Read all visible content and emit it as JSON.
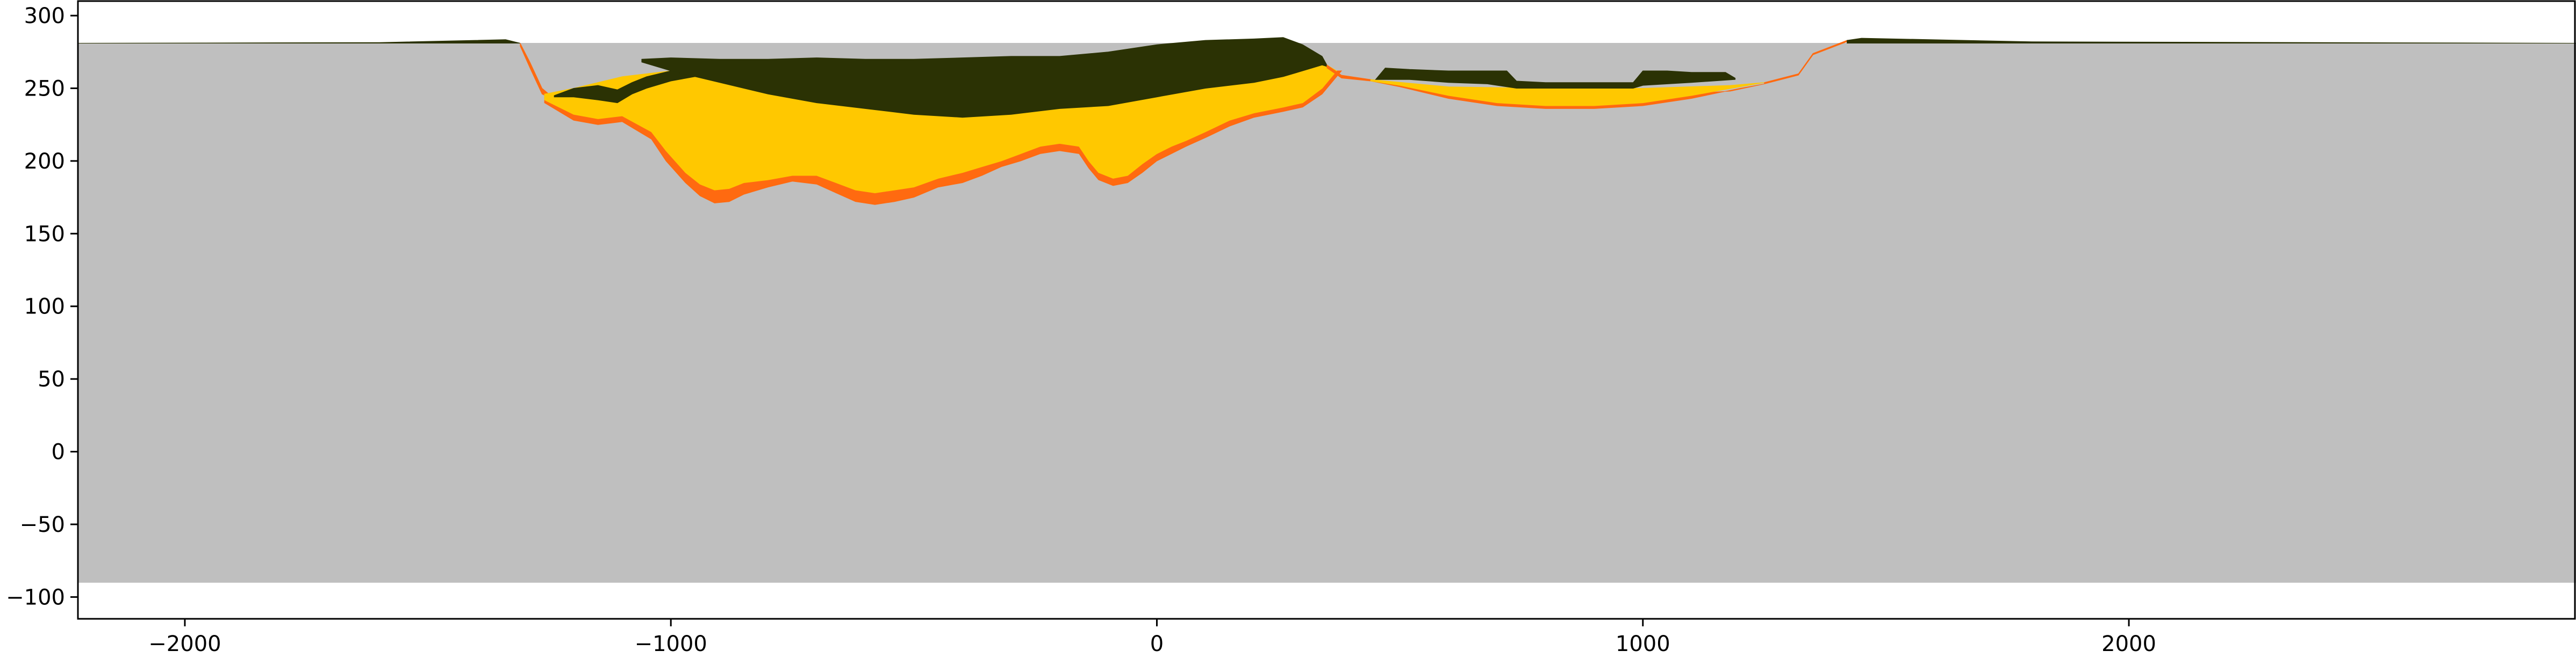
{
  "chart_data": {
    "type": "area",
    "title": "",
    "xlabel": "",
    "ylabel": "",
    "xlim": [
      -2220,
      2920
    ],
    "ylim": [
      -115,
      310
    ],
    "x_ticks": [
      -2000,
      -1000,
      0,
      1000,
      2000
    ],
    "x_tick_labels": [
      "−2000",
      "−1000",
      "0",
      "1000",
      "2000"
    ],
    "y_ticks": [
      -100,
      -50,
      0,
      50,
      100,
      150,
      200,
      250,
      300
    ],
    "y_tick_labels": [
      "−100",
      "−50",
      "0",
      "50",
      "100",
      "150",
      "200",
      "250",
      "300"
    ],
    "grid": false,
    "legend": "none",
    "colors": {
      "basement": "#bfbfbf",
      "orange": "#ff6a10",
      "yellow": "#ffc800",
      "dark": "#2b3204",
      "olive": "#8a7e3a"
    },
    "series": [
      {
        "role": "basement",
        "color": "#bfbfbf",
        "top": [
          [
            -2220,
            281
          ],
          [
            2920,
            281
          ]
        ],
        "bottom": [
          [
            -2220,
            -90
          ],
          [
            2920,
            -90
          ]
        ]
      },
      {
        "role": "west-bank-surface",
        "color": "#2b3204",
        "top": [
          [
            -2220,
            281
          ],
          [
            -1600,
            281.5
          ],
          [
            -1340,
            283.5
          ],
          [
            -1310,
            281
          ]
        ],
        "bottom": [
          [
            -2220,
            281
          ],
          [
            -1310,
            281
          ]
        ]
      },
      {
        "role": "west-slope-rim",
        "color": "#ff6a10",
        "top": [
          [
            -1310,
            281
          ],
          [
            -1290,
            268
          ],
          [
            -1265,
            250
          ],
          [
            -1240,
            243
          ]
        ],
        "bottom": [
          [
            -1310,
            279
          ],
          [
            -1290,
            264
          ],
          [
            -1265,
            246
          ],
          [
            -1240,
            242
          ]
        ]
      },
      {
        "role": "orange-basal-unit",
        "color": "#ff6a10",
        "top": [
          [
            -1260,
            244
          ],
          [
            -1200,
            241
          ],
          [
            -1100,
            233
          ],
          [
            -1000,
            223
          ],
          [
            -900,
            212
          ],
          [
            -800,
            205
          ],
          [
            -700,
            200
          ],
          [
            -600,
            203
          ],
          [
            -500,
            206
          ],
          [
            -400,
            212
          ],
          [
            -300,
            218
          ],
          [
            -200,
            224
          ],
          [
            -100,
            232
          ],
          [
            0,
            238
          ],
          [
            100,
            246
          ],
          [
            200,
            250
          ],
          [
            300,
            255
          ],
          [
            360,
            262
          ]
        ],
        "bottom": [
          [
            -1260,
            240
          ],
          [
            -1200,
            228
          ],
          [
            -1150,
            225
          ],
          [
            -1100,
            227
          ],
          [
            -1040,
            215
          ],
          [
            -1010,
            200
          ],
          [
            -970,
            185
          ],
          [
            -940,
            176
          ],
          [
            -910,
            171
          ],
          [
            -880,
            172
          ],
          [
            -850,
            177
          ],
          [
            -800,
            182
          ],
          [
            -750,
            186
          ],
          [
            -700,
            184
          ],
          [
            -660,
            178
          ],
          [
            -620,
            172
          ],
          [
            -580,
            170
          ],
          [
            -540,
            172
          ],
          [
            -500,
            175
          ],
          [
            -450,
            182
          ],
          [
            -400,
            185
          ],
          [
            -360,
            190
          ],
          [
            -320,
            196
          ],
          [
            -280,
            200
          ],
          [
            -240,
            205
          ],
          [
            -200,
            207
          ],
          [
            -160,
            205
          ],
          [
            -140,
            195
          ],
          [
            -120,
            187
          ],
          [
            -90,
            183
          ],
          [
            -60,
            185
          ],
          [
            -30,
            192
          ],
          [
            0,
            200
          ],
          [
            30,
            205
          ],
          [
            60,
            210
          ],
          [
            100,
            216
          ],
          [
            150,
            224
          ],
          [
            200,
            230
          ],
          [
            260,
            234
          ],
          [
            300,
            237
          ],
          [
            340,
            246
          ],
          [
            380,
            262
          ]
        ]
      },
      {
        "role": "yellow-unit",
        "color": "#ffc800",
        "top": [
          [
            -1260,
            246
          ],
          [
            -1200,
            250
          ],
          [
            -1100,
            258
          ],
          [
            -1000,
            262
          ],
          [
            -900,
            264
          ],
          [
            -800,
            266
          ],
          [
            -700,
            268
          ],
          [
            -600,
            268
          ],
          [
            -500,
            268
          ],
          [
            -400,
            268
          ],
          [
            -300,
            270
          ],
          [
            -200,
            271
          ],
          [
            -100,
            273
          ],
          [
            0,
            276
          ],
          [
            100,
            277
          ],
          [
            200,
            279
          ],
          [
            300,
            276
          ],
          [
            350,
            266
          ]
        ],
        "bottom": [
          [
            -1260,
            242
          ],
          [
            -1200,
            232
          ],
          [
            -1150,
            229
          ],
          [
            -1100,
            231
          ],
          [
            -1040,
            220
          ],
          [
            -1010,
            207
          ],
          [
            -970,
            192
          ],
          [
            -940,
            184
          ],
          [
            -910,
            180
          ],
          [
            -880,
            181
          ],
          [
            -850,
            185
          ],
          [
            -800,
            187
          ],
          [
            -750,
            190
          ],
          [
            -700,
            190
          ],
          [
            -660,
            185
          ],
          [
            -620,
            180
          ],
          [
            -580,
            178
          ],
          [
            -540,
            180
          ],
          [
            -500,
            182
          ],
          [
            -450,
            188
          ],
          [
            -400,
            192
          ],
          [
            -360,
            196
          ],
          [
            -320,
            200
          ],
          [
            -280,
            205
          ],
          [
            -240,
            210
          ],
          [
            -200,
            212
          ],
          [
            -160,
            210
          ],
          [
            -140,
            200
          ],
          [
            -120,
            192
          ],
          [
            -90,
            188
          ],
          [
            -60,
            190
          ],
          [
            -30,
            198
          ],
          [
            0,
            205
          ],
          [
            30,
            210
          ],
          [
            60,
            214
          ],
          [
            100,
            220
          ],
          [
            150,
            228
          ],
          [
            200,
            233
          ],
          [
            260,
            237
          ],
          [
            300,
            240
          ],
          [
            340,
            250
          ],
          [
            370,
            262
          ]
        ]
      },
      {
        "role": "dark-unit-lower",
        "color": "#2b3204",
        "top": [
          [
            -1240,
            245
          ],
          [
            -1200,
            250
          ],
          [
            -1150,
            252
          ],
          [
            -1110,
            249
          ],
          [
            -1080,
            254
          ],
          [
            -1050,
            258
          ],
          [
            -1000,
            262
          ],
          [
            -950,
            264
          ],
          [
            -900,
            266
          ]
        ],
        "bottom": [
          [
            -1240,
            244
          ],
          [
            -1200,
            244
          ],
          [
            -1150,
            242
          ],
          [
            -1110,
            240
          ],
          [
            -1080,
            246
          ],
          [
            -1050,
            250
          ],
          [
            -1000,
            255
          ],
          [
            -950,
            258
          ],
          [
            -900,
            260
          ]
        ]
      },
      {
        "role": "dark-unit-upper",
        "color": "#2b3204",
        "top": [
          [
            -1060,
            270
          ],
          [
            -1000,
            271
          ],
          [
            -900,
            270
          ],
          [
            -800,
            270
          ],
          [
            -700,
            271
          ],
          [
            -600,
            270
          ],
          [
            -500,
            270
          ],
          [
            -400,
            271
          ],
          [
            -300,
            272
          ],
          [
            -200,
            272
          ],
          [
            -100,
            275
          ],
          [
            0,
            280
          ],
          [
            100,
            283
          ],
          [
            200,
            284
          ],
          [
            260,
            285
          ],
          [
            300,
            280
          ],
          [
            340,
            272
          ],
          [
            350,
            266
          ]
        ],
        "bottom": [
          [
            -1060,
            268
          ],
          [
            -1000,
            262
          ],
          [
            -900,
            254
          ],
          [
            -800,
            246
          ],
          [
            -700,
            240
          ],
          [
            -600,
            236
          ],
          [
            -500,
            232
          ],
          [
            -400,
            230
          ],
          [
            -300,
            232
          ],
          [
            -200,
            236
          ],
          [
            -100,
            238
          ],
          [
            0,
            244
          ],
          [
            100,
            250
          ],
          [
            200,
            254
          ],
          [
            260,
            258
          ],
          [
            300,
            262
          ],
          [
            340,
            266
          ],
          [
            350,
            265
          ]
        ]
      },
      {
        "role": "east-slope",
        "color": "#ff6a10",
        "top": [
          [
            350,
            266
          ],
          [
            380,
            259
          ],
          [
            440,
            256
          ]
        ],
        "bottom": [
          [
            350,
            264
          ],
          [
            380,
            257
          ],
          [
            440,
            255
          ]
        ]
      },
      {
        "role": "east-shallow-orange",
        "color": "#ff6a10",
        "top": [
          [
            440,
            256
          ],
          [
            600,
            248
          ],
          [
            800,
            245
          ],
          [
            1000,
            245
          ],
          [
            1180,
            248
          ],
          [
            1250,
            253
          ]
        ],
        "bottom": [
          [
            440,
            255
          ],
          [
            500,
            251
          ],
          [
            600,
            243
          ],
          [
            700,
            238
          ],
          [
            800,
            236
          ],
          [
            900,
            236
          ],
          [
            1000,
            238
          ],
          [
            1100,
            243
          ],
          [
            1200,
            250
          ],
          [
            1250,
            253
          ]
        ]
      },
      {
        "role": "east-shallow-yellow",
        "color": "#ffc800",
        "top": [
          [
            440,
            256
          ],
          [
            600,
            251
          ],
          [
            800,
            250
          ],
          [
            1000,
            250
          ],
          [
            1180,
            252
          ],
          [
            1250,
            254
          ]
        ],
        "bottom": [
          [
            440,
            255
          ],
          [
            500,
            252
          ],
          [
            600,
            245
          ],
          [
            700,
            240
          ],
          [
            800,
            238
          ],
          [
            900,
            238
          ],
          [
            1000,
            240
          ],
          [
            1100,
            245
          ],
          [
            1200,
            251
          ],
          [
            1250,
            254
          ]
        ]
      },
      {
        "role": "east-shallow-dark",
        "color": "#2b3204",
        "top": [
          [
            450,
            256
          ],
          [
            470,
            264
          ],
          [
            520,
            263
          ],
          [
            600,
            262
          ],
          [
            680,
            262
          ],
          [
            720,
            262
          ],
          [
            740,
            255
          ],
          [
            800,
            254
          ],
          [
            900,
            254
          ],
          [
            980,
            254
          ],
          [
            1000,
            262
          ],
          [
            1050,
            262
          ],
          [
            1100,
            261
          ],
          [
            1170,
            261
          ],
          [
            1190,
            257
          ]
        ],
        "bottom": [
          [
            450,
            256
          ],
          [
            520,
            256
          ],
          [
            600,
            254
          ],
          [
            680,
            253
          ],
          [
            740,
            250
          ],
          [
            800,
            250
          ],
          [
            900,
            250
          ],
          [
            980,
            250
          ],
          [
            1000,
            252
          ],
          [
            1100,
            254
          ],
          [
            1190,
            256
          ]
        ]
      },
      {
        "role": "east-bank-slope",
        "color": "#ff6a10",
        "top": [
          [
            1250,
            254
          ],
          [
            1320,
            260
          ],
          [
            1350,
            274
          ],
          [
            1420,
            283
          ]
        ],
        "bottom": [
          [
            1250,
            253
          ],
          [
            1320,
            259
          ],
          [
            1350,
            273
          ],
          [
            1420,
            282
          ]
        ]
      },
      {
        "role": "east-bank-surface",
        "color": "#2b3204",
        "top": [
          [
            1420,
            283
          ],
          [
            1450,
            284.5
          ],
          [
            1800,
            282
          ],
          [
            2920,
            281
          ]
        ],
        "bottom": [
          [
            1420,
            281
          ],
          [
            2920,
            281
          ]
        ]
      }
    ]
  }
}
